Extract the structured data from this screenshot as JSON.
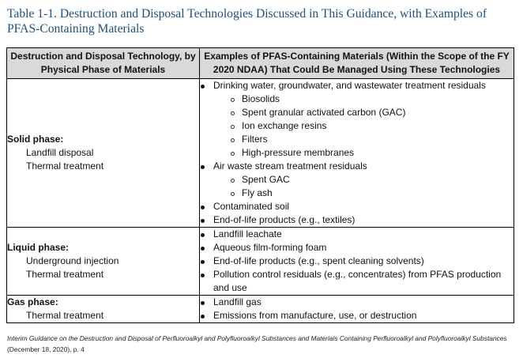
{
  "title": "Table 1-1. Destruction and Disposal Technologies Discussed in This Guidance, with Examples of PFAS-Containing Materials",
  "table": {
    "headers": [
      "Destruction and Disposal Technology, by Physical Phase of Materials",
      "Examples of PFAS-Containing Materials (Within the Scope of the FY 2020 NDAA) That Could Be Managed Using These Technologies"
    ],
    "rows": [
      {
        "phase": "Solid phase:",
        "technologies": [
          "Landfill disposal",
          "Thermal treatment"
        ],
        "examples": [
          {
            "text": "Drinking water, groundwater, and wastewater treatment residuals",
            "sub": [
              "Biosolids",
              "Spent granular activated carbon (GAC)",
              "Ion exchange resins",
              "Filters",
              "High-pressure membranes"
            ]
          },
          {
            "text": "Air waste stream treatment residuals",
            "sub": [
              "Spent GAC",
              "Fly ash"
            ]
          },
          {
            "text": "Contaminated soil"
          },
          {
            "text": "End-of-life products (e.g., textiles)"
          }
        ]
      },
      {
        "phase": "Liquid phase:",
        "technologies": [
          "Underground injection",
          "Thermal treatment"
        ],
        "examples": [
          {
            "text": "Landfill leachate"
          },
          {
            "text": "Aqueous film-forming foam"
          },
          {
            "text": "End-of-life products (e.g., spent cleaning solvents)"
          },
          {
            "text": "Pollution control residuals (e.g., concentrates) from PFAS production and use"
          }
        ]
      },
      {
        "phase": "Gas phase:",
        "technologies": [
          "Thermal treatment"
        ],
        "examples": [
          {
            "text": "Landfill gas"
          },
          {
            "text": "Emissions from manufacture, use, or destruction"
          }
        ]
      }
    ]
  },
  "source": {
    "citation_italic": "Interim Guidance on the Destruction and Disposal of Perfluoroalkyl and Polyfluoroalkyl Substances and Materials Containing Perfluoroalkyl and Polyfluoroalkyl Substances",
    "citation_rest": " (December 18, 2020), p. 4"
  }
}
